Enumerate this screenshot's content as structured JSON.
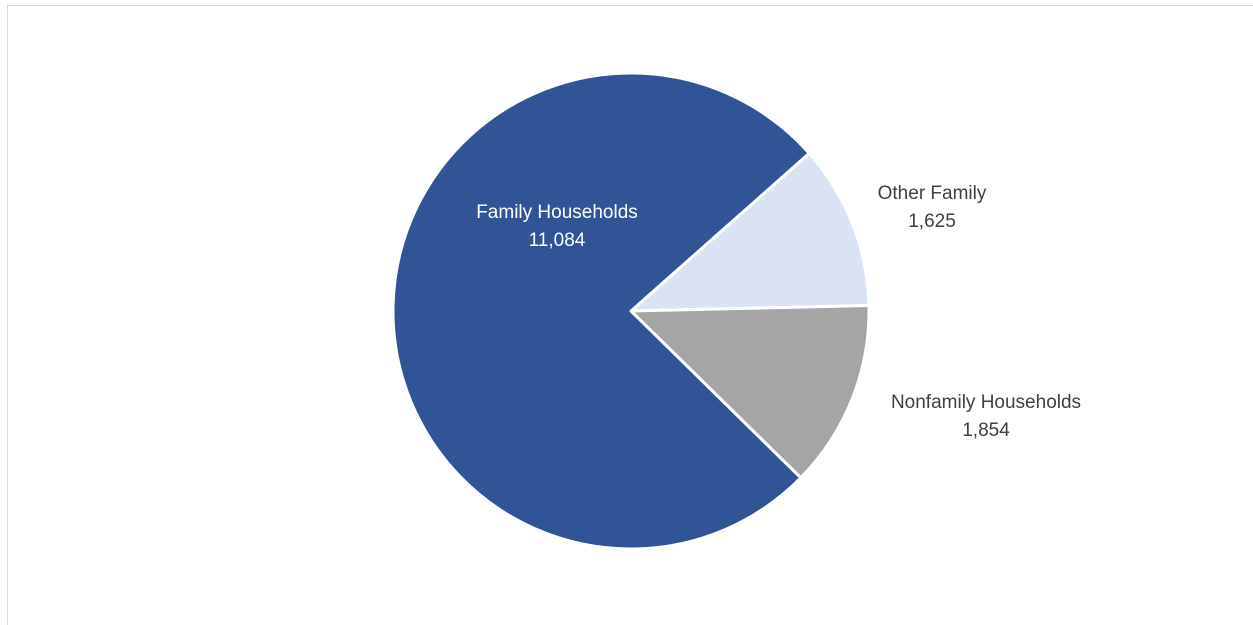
{
  "chart_data": {
    "type": "pie",
    "categories": [
      "Family Households",
      "Other Family",
      "Nonfamily Households"
    ],
    "values": [
      11084,
      1625,
      1854
    ],
    "value_labels": [
      "11,084",
      "1,625",
      "1,854"
    ],
    "colors": [
      "#305496",
      "#dae3f3",
      "#a5a5a5"
    ],
    "label_colors": [
      "#ffffff",
      "#404040",
      "#404040"
    ],
    "title": "",
    "legend": "none"
  }
}
